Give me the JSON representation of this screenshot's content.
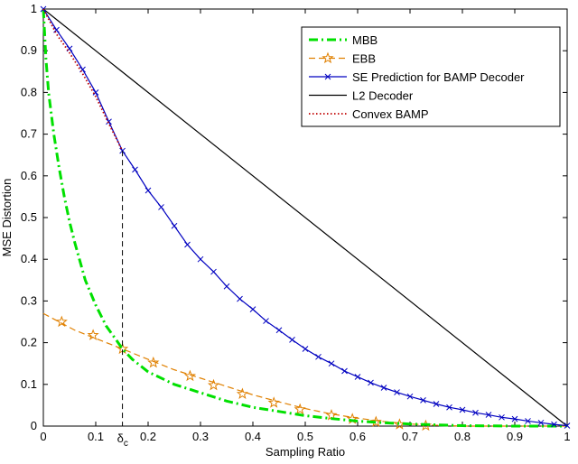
{
  "chart_data": {
    "type": "line",
    "xlabel": "Sampling Ratio",
    "ylabel": "MSE Distortion",
    "xlim": [
      0,
      1
    ],
    "ylim": [
      0,
      1
    ],
    "xticks": [
      "0",
      "0.1",
      "0.2",
      "0.3",
      "0.4",
      "0.5",
      "0.6",
      "0.7",
      "0.8",
      "0.9",
      "1"
    ],
    "yticks": [
      "0",
      "0.1",
      "0.2",
      "0.3",
      "0.4",
      "0.5",
      "0.6",
      "0.7",
      "0.8",
      "0.9",
      "1"
    ],
    "delta_label": "δ",
    "delta_sub": "c",
    "delta_x": 0.151,
    "delta_y": 0.185,
    "grid": false,
    "legend_position": "top-right",
    "series": [
      {
        "name": "MBB",
        "color": "#00e000",
        "style": "dashdot",
        "marker": "none",
        "x": [
          0,
          0.005,
          0.01,
          0.02,
          0.03,
          0.04,
          0.05,
          0.06,
          0.08,
          0.1,
          0.12,
          0.14,
          0.151,
          0.17,
          0.2,
          0.25,
          0.3,
          0.35,
          0.4,
          0.45,
          0.5,
          0.55,
          0.6,
          0.65,
          0.7,
          0.75,
          0.8,
          0.9,
          1.0
        ],
        "y": [
          1.0,
          0.88,
          0.8,
          0.7,
          0.62,
          0.55,
          0.49,
          0.44,
          0.35,
          0.29,
          0.24,
          0.205,
          0.185,
          0.16,
          0.13,
          0.1,
          0.08,
          0.06,
          0.045,
          0.035,
          0.025,
          0.018,
          0.012,
          0.008,
          0.005,
          0.003,
          0.001,
          0.0,
          0.0
        ]
      },
      {
        "name": "EBB",
        "color": "#e08000",
        "style": "dashed",
        "marker": "star",
        "x": [
          0,
          0.03,
          0.06,
          0.1,
          0.151,
          0.2,
          0.25,
          0.3,
          0.35,
          0.4,
          0.45,
          0.5,
          0.55,
          0.6,
          0.65,
          0.7,
          0.75,
          0.8,
          0.9,
          1.0
        ],
        "y": [
          0.27,
          0.25,
          0.23,
          0.21,
          0.185,
          0.16,
          0.135,
          0.115,
          0.095,
          0.075,
          0.058,
          0.042,
          0.029,
          0.019,
          0.011,
          0.005,
          0.002,
          0.0,
          0.0,
          0.0
        ],
        "marker_x": [
          0.035,
          0.095,
          0.151,
          0.21,
          0.28,
          0.325,
          0.38,
          0.44,
          0.49,
          0.55,
          0.59,
          0.635,
          0.68,
          0.73
        ],
        "marker_y": [
          0.25,
          0.218,
          0.185,
          0.152,
          0.12,
          0.098,
          0.077,
          0.056,
          0.04,
          0.026,
          0.017,
          0.01,
          0.004,
          0.001
        ]
      },
      {
        "name": "SE Prediction for BAMP Decoder",
        "color": "#0000c0",
        "style": "solid",
        "marker": "x",
        "x": [
          0,
          0.025,
          0.05,
          0.075,
          0.1,
          0.125,
          0.151,
          0.175,
          0.2,
          0.225,
          0.25,
          0.275,
          0.3,
          0.325,
          0.35,
          0.375,
          0.4,
          0.425,
          0.45,
          0.475,
          0.5,
          0.525,
          0.55,
          0.575,
          0.6,
          0.625,
          0.65,
          0.675,
          0.7,
          0.725,
          0.75,
          0.775,
          0.8,
          0.825,
          0.85,
          0.875,
          0.9,
          0.925,
          0.95,
          0.975,
          1.0
        ],
        "y": [
          1.0,
          0.95,
          0.905,
          0.855,
          0.8,
          0.73,
          0.66,
          0.615,
          0.565,
          0.525,
          0.48,
          0.435,
          0.4,
          0.37,
          0.335,
          0.305,
          0.28,
          0.252,
          0.23,
          0.207,
          0.185,
          0.166,
          0.15,
          0.132,
          0.118,
          0.104,
          0.092,
          0.081,
          0.071,
          0.062,
          0.053,
          0.045,
          0.039,
          0.032,
          0.027,
          0.021,
          0.017,
          0.012,
          0.008,
          0.004,
          0.001
        ]
      },
      {
        "name": "L2 Decoder",
        "color": "#000000",
        "style": "solid",
        "marker": "none",
        "x": [
          0,
          1
        ],
        "y": [
          1,
          0
        ]
      },
      {
        "name": "Convex BAMP",
        "color": "#c00000",
        "style": "dotted",
        "marker": "none",
        "x": [
          0,
          0.025,
          0.05,
          0.075,
          0.1,
          0.125,
          0.151
        ],
        "y": [
          1.0,
          0.94,
          0.895,
          0.845,
          0.79,
          0.725,
          0.66
        ]
      }
    ]
  }
}
